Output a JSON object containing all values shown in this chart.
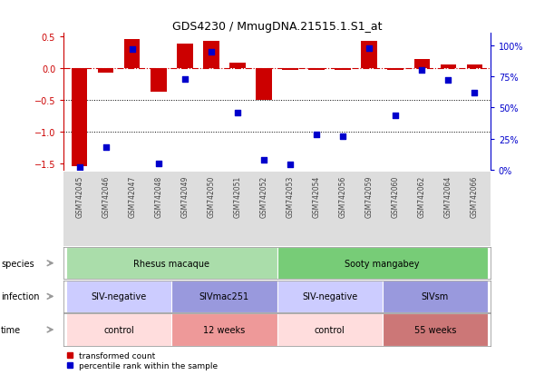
{
  "title": "GDS4230 / MmugDNA.21515.1.S1_at",
  "samples": [
    "GSM742045",
    "GSM742046",
    "GSM742047",
    "GSM742048",
    "GSM742049",
    "GSM742050",
    "GSM742051",
    "GSM742052",
    "GSM742053",
    "GSM742054",
    "GSM742056",
    "GSM742059",
    "GSM742060",
    "GSM742062",
    "GSM742064",
    "GSM742066"
  ],
  "bar_values": [
    -1.55,
    -0.08,
    0.45,
    -0.38,
    0.38,
    0.42,
    0.08,
    -0.5,
    -0.03,
    -0.03,
    -0.03,
    0.42,
    -0.03,
    0.14,
    0.05,
    0.05
  ],
  "dot_values": [
    2,
    18,
    97,
    5,
    73,
    95,
    46,
    8,
    4,
    28,
    27,
    98,
    44,
    80,
    72,
    62
  ],
  "ylim_left": [
    -1.6,
    0.55
  ],
  "ylim_right": [
    0,
    110
  ],
  "bar_color": "#cc0000",
  "dot_color": "#0000cc",
  "hline_y": 0,
  "hline_color": "#cc0000",
  "dotted_lines": [
    -0.5,
    -1.0
  ],
  "left_ticks": [
    -1.5,
    -1.0,
    -0.5,
    0.0,
    0.5
  ],
  "right_ticks": [
    0,
    25,
    50,
    75,
    100
  ],
  "right_tick_labels": [
    "0%",
    "25%",
    "50%",
    "75%",
    "100%"
  ],
  "species_labels": [
    {
      "text": "Rhesus macaque",
      "start": 0,
      "end": 8,
      "color": "#aaddaa"
    },
    {
      "text": "Sooty mangabey",
      "start": 8,
      "end": 16,
      "color": "#77cc77"
    }
  ],
  "infection_labels": [
    {
      "text": "SIV-negative",
      "start": 0,
      "end": 4,
      "color": "#ccccff"
    },
    {
      "text": "SIVmac251",
      "start": 4,
      "end": 8,
      "color": "#9999dd"
    },
    {
      "text": "SIV-negative",
      "start": 8,
      "end": 12,
      "color": "#ccccff"
    },
    {
      "text": "SIVsm",
      "start": 12,
      "end": 16,
      "color": "#9999dd"
    }
  ],
  "time_labels": [
    {
      "text": "control",
      "start": 0,
      "end": 4,
      "color": "#ffdddd"
    },
    {
      "text": "12 weeks",
      "start": 4,
      "end": 8,
      "color": "#ee9999"
    },
    {
      "text": "control",
      "start": 8,
      "end": 12,
      "color": "#ffdddd"
    },
    {
      "text": "55 weeks",
      "start": 12,
      "end": 16,
      "color": "#cc7777"
    }
  ],
  "row_labels": [
    "species",
    "infection",
    "time"
  ],
  "legend_bar_label": "transformed count",
  "legend_dot_label": "percentile rank within the sample",
  "arrow_color": "#999999",
  "sample_bg_color": "#dddddd",
  "sample_label_color": "#444444"
}
